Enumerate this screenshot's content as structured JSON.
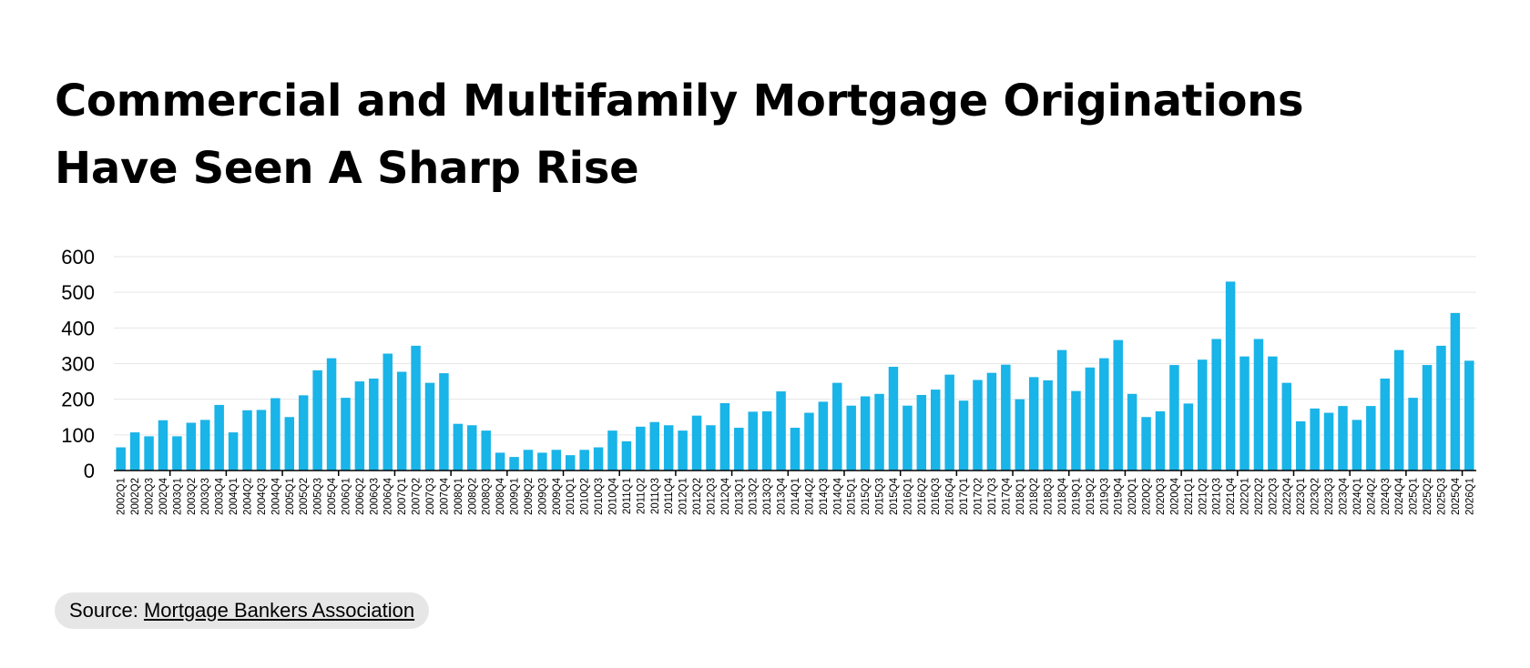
{
  "header": {
    "title_line1": "Commercial and Multifamily Mortgage Originations",
    "title_line2": "Have Seen A Sharp Rise"
  },
  "source": {
    "prefix": "Source: ",
    "link_text": "Mortgage Bankers Association"
  },
  "colors": {
    "bar": "#19b4e8",
    "grid": "#e6e6e6",
    "axis": "#000000"
  },
  "chart_data": {
    "type": "bar",
    "title": "",
    "xlabel": "",
    "ylabel": "",
    "ylim": [
      0,
      600
    ],
    "yticks": [
      0,
      100,
      200,
      300,
      400,
      500,
      600
    ],
    "grid": true,
    "categories": [
      "2002Q1",
      "2002Q2",
      "2002Q3",
      "2002Q4",
      "2003Q1",
      "2003Q2",
      "2003Q3",
      "2003Q4",
      "2004Q1",
      "2004Q2",
      "2004Q3",
      "2004Q4",
      "2005Q1",
      "2005Q2",
      "2005Q3",
      "2005Q4",
      "2006Q1",
      "2006Q2",
      "2006Q3",
      "2006Q4",
      "2007Q1",
      "2007Q2",
      "2007Q3",
      "2007Q4",
      "2008Q1",
      "2008Q2",
      "2008Q3",
      "2008Q4",
      "2009Q1",
      "2009Q2",
      "2009Q3",
      "2009Q4",
      "2010Q1",
      "2010Q2",
      "2010Q3",
      "2010Q4",
      "2011Q1",
      "2011Q2",
      "2011Q3",
      "2011Q4",
      "2012Q1",
      "2012Q2",
      "2012Q3",
      "2012Q4",
      "2013Q1",
      "2013Q2",
      "2013Q3",
      "2013Q4",
      "2014Q1",
      "2014Q2",
      "2014Q3",
      "2014Q4",
      "2015Q1",
      "2015Q2",
      "2015Q3",
      "2015Q4",
      "2016Q1",
      "2016Q2",
      "2016Q3",
      "2016Q4",
      "2017Q1",
      "2017Q2",
      "2017Q3",
      "2017Q4",
      "2018Q1",
      "2018Q2",
      "2018Q3",
      "2018Q4",
      "2019Q1",
      "2019Q2",
      "2019Q3",
      "2019Q4",
      "2020Q1",
      "2020Q2",
      "2020Q3",
      "2020Q4",
      "2021Q1",
      "2021Q2",
      "2021Q3",
      "2021Q4",
      "2022Q1",
      "2022Q2",
      "2022Q3",
      "2022Q4",
      "2023Q1",
      "2023Q2",
      "2023Q3",
      "2023Q4",
      "2024Q1",
      "2024Q2",
      "2024Q3",
      "2024Q4",
      "2025Q1",
      "2025Q2",
      "2025Q3",
      "2025Q4",
      "2026Q1"
    ],
    "values": [
      65,
      107,
      96,
      141,
      96,
      134,
      142,
      184,
      107,
      169,
      170,
      203,
      150,
      211,
      281,
      315,
      204,
      250,
      258,
      328,
      277,
      350,
      246,
      273,
      131,
      127,
      112,
      50,
      38,
      58,
      50,
      58,
      43,
      58,
      65,
      112,
      82,
      123,
      136,
      127,
      112,
      154,
      127,
      189,
      120,
      165,
      166,
      222,
      120,
      162,
      193,
      246,
      182,
      208,
      215,
      291,
      182,
      212,
      227,
      269,
      196,
      254,
      274,
      297,
      200,
      262,
      253,
      338,
      223,
      289,
      315,
      366,
      215,
      150,
      166,
      296,
      188,
      311,
      369,
      530,
      320,
      369,
      320,
      246,
      138,
      174,
      162,
      181,
      142,
      181,
      258,
      338,
      204,
      296,
      350,
      442,
      308
    ]
  }
}
